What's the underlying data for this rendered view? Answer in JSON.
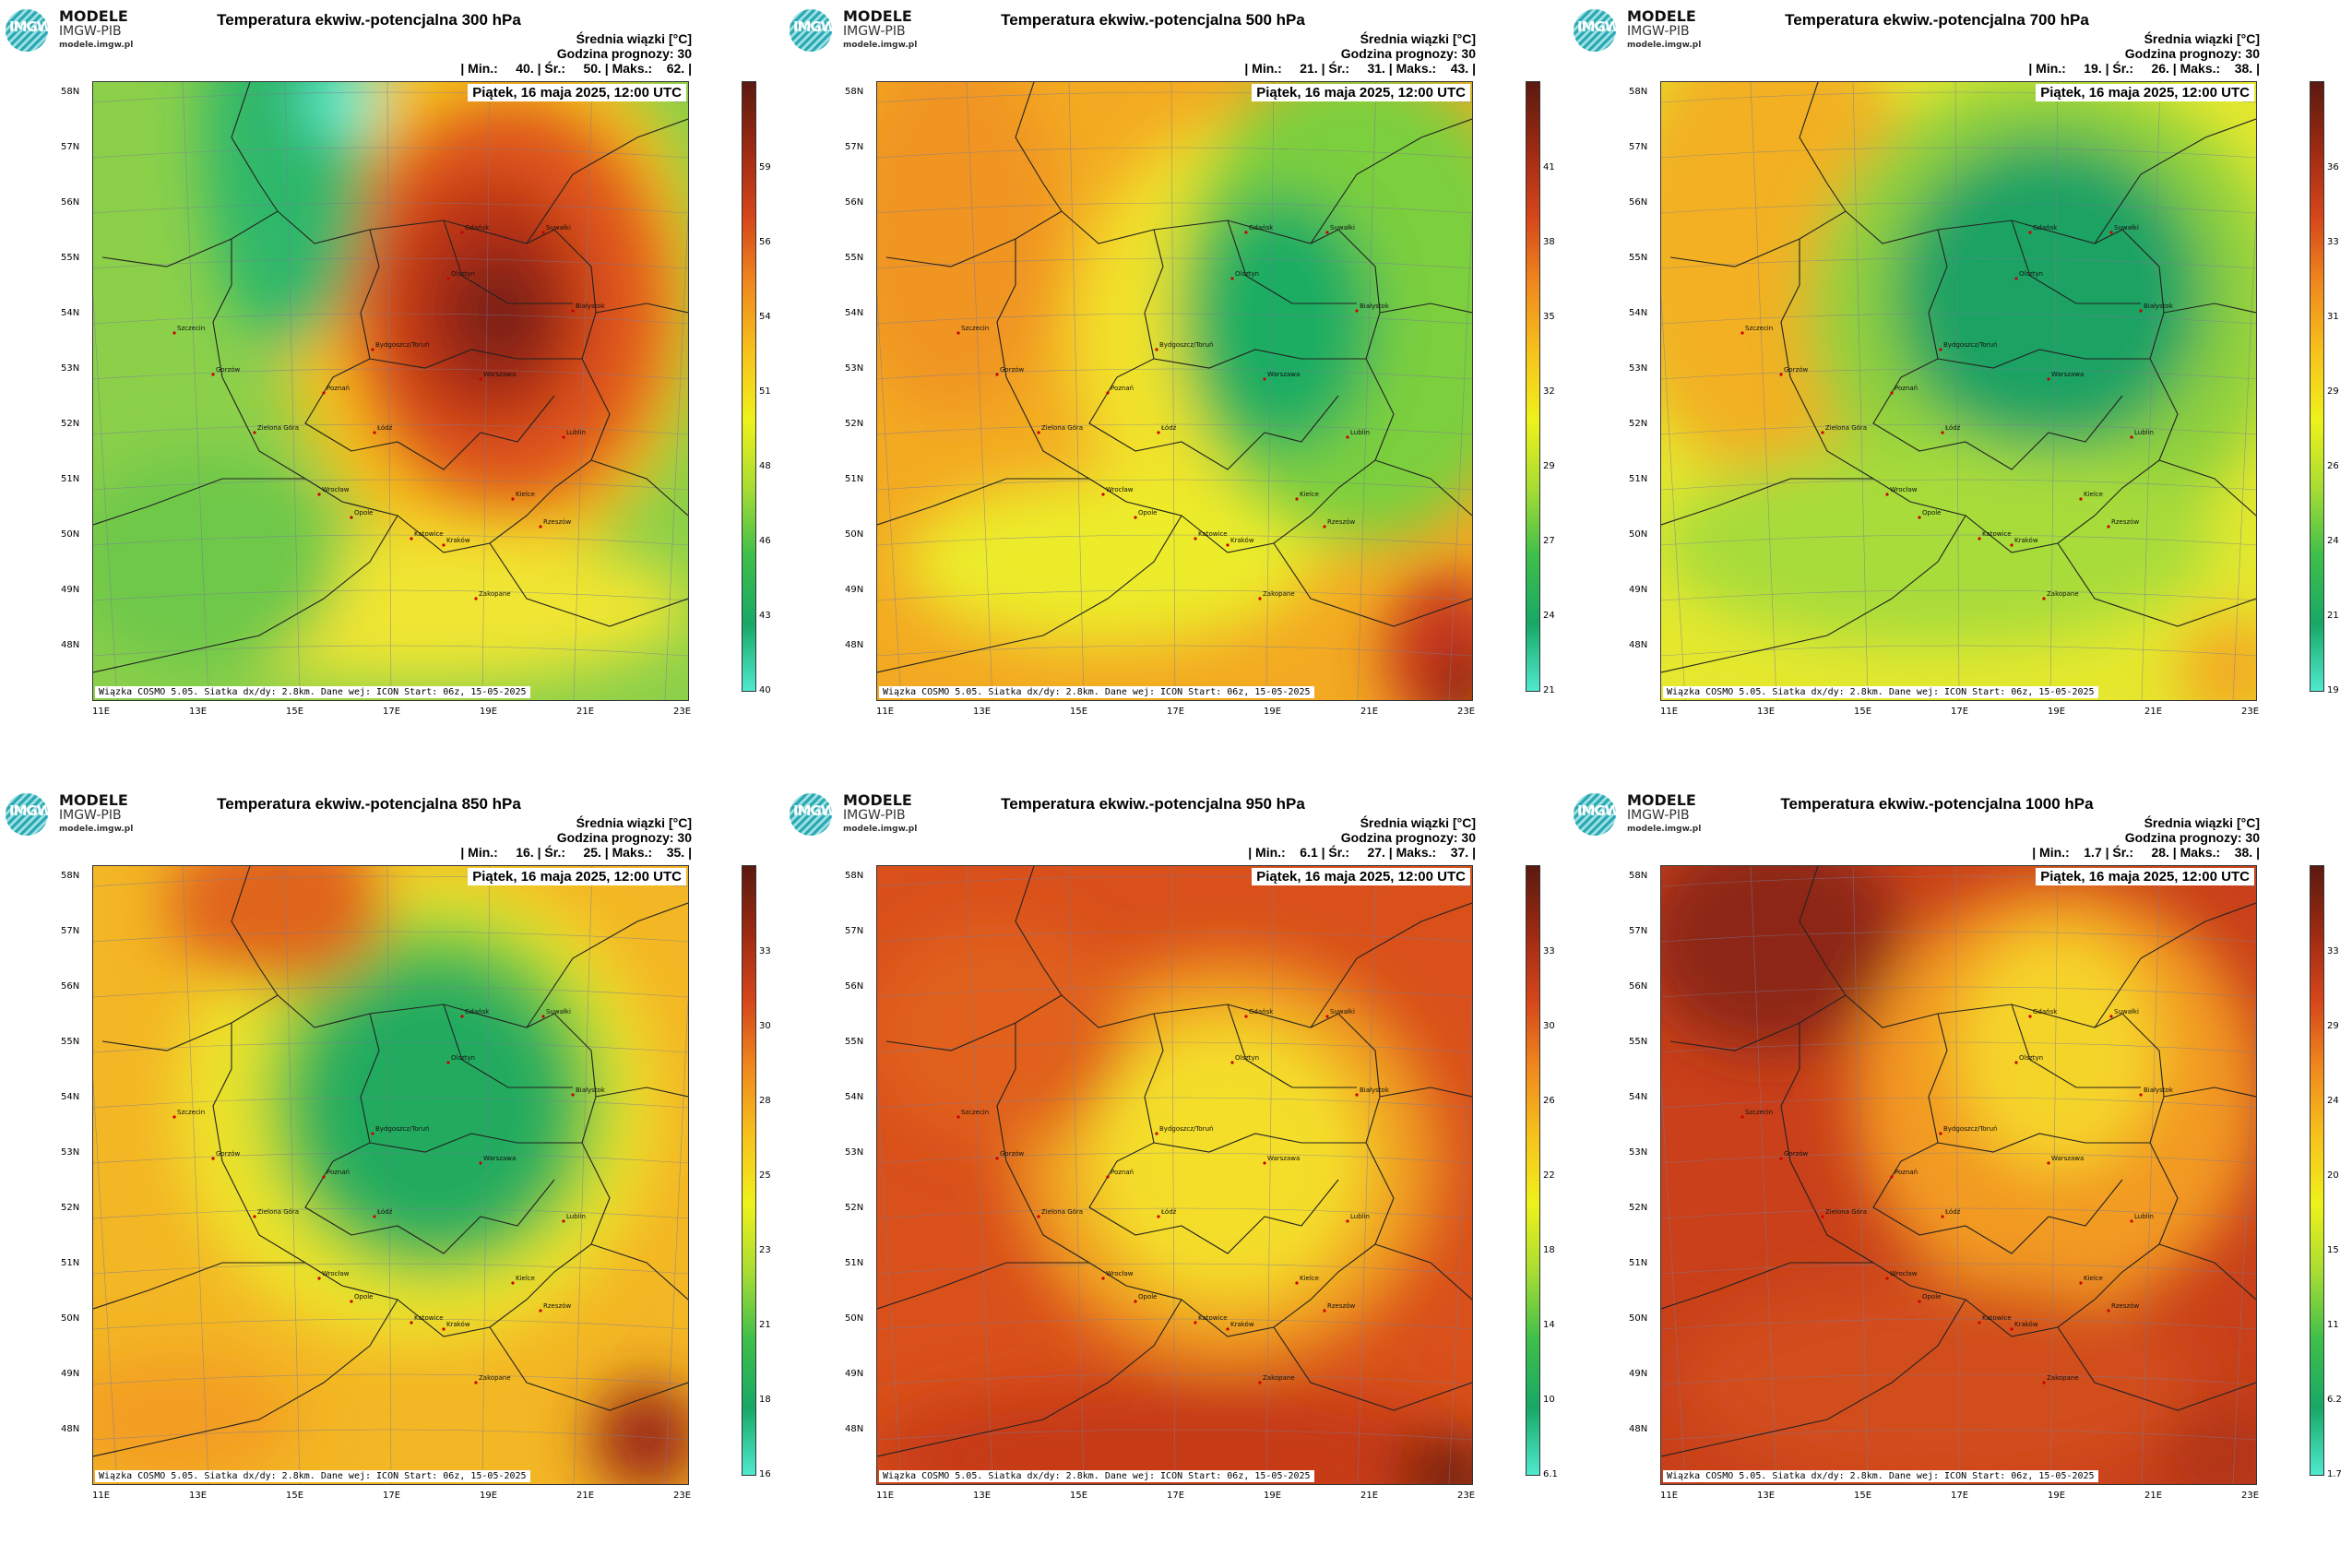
{
  "logo": {
    "line1": "MODELE",
    "line2": "IMGW-PIB",
    "line3": "modele.imgw.pl",
    "mark": "IMGW"
  },
  "header": {
    "average_label": "Średnia wiązki [°C]",
    "forecast_hour": "Godzina prognozy: 30"
  },
  "date": "Piątek, 16 maja 2025, 12:00 UTC",
  "footer": "Wiązka COSMO 5.05. Siatka dx/dy: 2.8km. Dane wej: ICON Start: 06z, 15-05-2025",
  "lat_labels": [
    "58N",
    "57N",
    "56N",
    "55N",
    "54N",
    "53N",
    "52N",
    "51N",
    "50N",
    "49N",
    "48N"
  ],
  "lon_labels": [
    "11E",
    "13E",
    "15E",
    "17E",
    "19E",
    "21E",
    "23E"
  ],
  "cities": [
    "Gdańsk",
    "Olsztyn",
    "Suwałki",
    "Szczecin",
    "Bydgoszcz/Toruń",
    "Białystok",
    "Gorzów",
    "Poznań",
    "Warszawa",
    "Zielona Góra",
    "Łódź",
    "Lublin",
    "Wrocław",
    "Opole",
    "Kielce",
    "Katowice",
    "Kraków",
    "Rzeszów",
    "Zakopane"
  ],
  "panels": [
    {
      "title": "Temperatura ekwiw.-potencjalna 300 hPa",
      "stats": "| Min.:     40. | Śr.:     50. | Maks.:    62. |",
      "cbar_ticks": [
        "59",
        "56",
        "54",
        "51",
        "48",
        "46",
        "43",
        "40"
      ],
      "cbar_colors": [
        "#5b1a10",
        "#9e2a12",
        "#d6461b",
        "#f08a1c",
        "#f7c21c",
        "#eef21a",
        "#a8dc33",
        "#3ebf4a",
        "#17a866",
        "#4fe9cf"
      ],
      "field": "p300"
    },
    {
      "title": "Temperatura ekwiw.-potencjalna 500 hPa",
      "stats": "| Min.:     21. | Śr.:     31. | Maks.:    43. |",
      "cbar_ticks": [
        "41",
        "38",
        "35",
        "32",
        "29",
        "27",
        "24",
        "21"
      ],
      "cbar_colors": [
        "#5b1a10",
        "#9e2a12",
        "#d6461b",
        "#f08a1c",
        "#f7c21c",
        "#eef21a",
        "#a8dc33",
        "#3ebf4a",
        "#17a866",
        "#4fe9cf"
      ],
      "field": "p500"
    },
    {
      "title": "Temperatura ekwiw.-potencjalna 700 hPa",
      "stats": "| Min.:     19. | Śr.:     26. | Maks.:    38. |",
      "cbar_ticks": [
        "36",
        "33",
        "31",
        "29",
        "26",
        "24",
        "21",
        "19"
      ],
      "cbar_colors": [
        "#5b1a10",
        "#9e2a12",
        "#d6461b",
        "#f08a1c",
        "#f7c21c",
        "#eef21a",
        "#a8dc33",
        "#3ebf4a",
        "#17a866",
        "#4fe9cf"
      ],
      "field": "p700"
    },
    {
      "title": "Temperatura ekwiw.-potencjalna 850 hPa",
      "stats": "| Min.:     16. | Śr.:     25. | Maks.:    35. |",
      "cbar_ticks": [
        "33",
        "30",
        "28",
        "25",
        "23",
        "21",
        "18",
        "16"
      ],
      "cbar_colors": [
        "#5b1a10",
        "#9e2a12",
        "#d6461b",
        "#f08a1c",
        "#f7c21c",
        "#eef21a",
        "#a8dc33",
        "#3ebf4a",
        "#17a866",
        "#4fe9cf"
      ],
      "field": "p850"
    },
    {
      "title": "Temperatura ekwiw.-potencjalna 950 hPa",
      "stats": "| Min.:    6.1 | Śr.:     27. | Maks.:    37. |",
      "cbar_ticks": [
        "33",
        "30",
        "26",
        "22",
        "18",
        "14",
        "10",
        "6.1"
      ],
      "cbar_colors": [
        "#5b1a10",
        "#9e2a12",
        "#d6461b",
        "#f08a1c",
        "#f7c21c",
        "#eef21a",
        "#a8dc33",
        "#3ebf4a",
        "#17a866",
        "#4fe9cf"
      ],
      "field": "p950"
    },
    {
      "title": "Temperatura ekwiw.-potencjalna 1000 hPa",
      "stats": "| Min.:    1.7 | Śr.:     28. | Maks.:    38. |",
      "cbar_ticks": [
        "33",
        "29",
        "24",
        "20",
        "15",
        "11",
        "6.2",
        "1.7"
      ],
      "cbar_colors": [
        "#5b1a10",
        "#9e2a12",
        "#d6461b",
        "#f08a1c",
        "#f7c21c",
        "#eef21a",
        "#a8dc33",
        "#3ebf4a",
        "#17a866",
        "#4fe9cf"
      ],
      "field": "p1000"
    }
  ]
}
